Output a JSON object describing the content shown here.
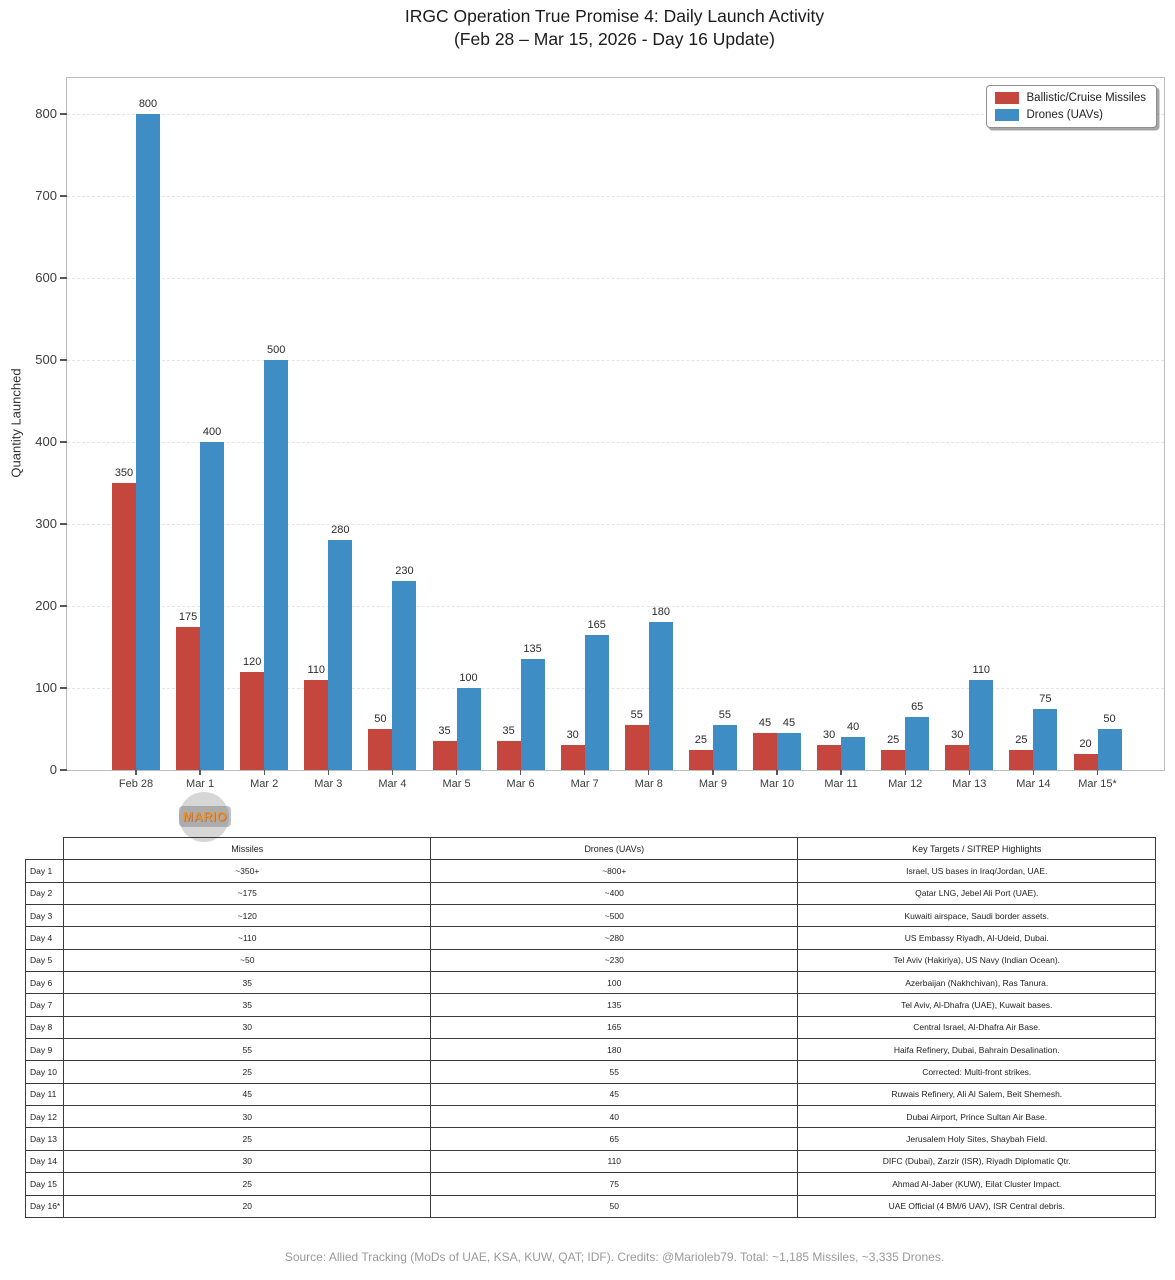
{
  "title": {
    "line1": "IRGC Operation True Promise 4: Daily Launch Activity",
    "line2": "(Feb 28 – Mar 15, 2026 - Day 16 Update)"
  },
  "chart_data": {
    "type": "bar",
    "title": "IRGC Operation True Promise 4: Daily Launch Activity (Feb 28 – Mar 15, 2026 - Day 16 Update)",
    "xlabel": "",
    "ylabel": "Quantity Launched",
    "ylim": [
      0,
      844
    ],
    "yticks": [
      0,
      100,
      200,
      300,
      400,
      500,
      600,
      700,
      800
    ],
    "grid": "horizontal-dashed",
    "legend_position": "top-right",
    "categories": [
      "Feb 28",
      "Mar 1",
      "Mar 2",
      "Mar 3",
      "Mar 4",
      "Mar 5",
      "Mar 6",
      "Mar 7",
      "Mar 8",
      "Mar 9",
      "Mar 10",
      "Mar 11",
      "Mar 12",
      "Mar 13",
      "Mar 14",
      "Mar 15*"
    ],
    "series": [
      {
        "name": "Ballistic/Cruise Missiles",
        "color": "#c5463c",
        "values": [
          350,
          175,
          120,
          110,
          50,
          35,
          35,
          30,
          55,
          25,
          45,
          30,
          25,
          30,
          25,
          20
        ]
      },
      {
        "name": "Drones (UAVs)",
        "color": "#3e8ec5",
        "values": [
          800,
          400,
          500,
          280,
          230,
          100,
          135,
          165,
          180,
          55,
          45,
          40,
          65,
          110,
          75,
          50
        ]
      }
    ]
  },
  "watermark": "MARIO",
  "table": {
    "headers": [
      "",
      "Missiles",
      "Drones (UAVs)",
      "Key Targets / SITREP Highlights"
    ],
    "rows": [
      {
        "label": "Day 1",
        "missiles": "~350+",
        "drones": "~800+",
        "targets": "Israel, US bases in Iraq/Jordan, UAE."
      },
      {
        "label": "Day 2",
        "missiles": "~175",
        "drones": "~400",
        "targets": "Qatar LNG, Jebel Ali Port (UAE)."
      },
      {
        "label": "Day 3",
        "missiles": "~120",
        "drones": "~500",
        "targets": "Kuwaiti airspace, Saudi border assets."
      },
      {
        "label": "Day 4",
        "missiles": "~110",
        "drones": "~280",
        "targets": "US Embassy Riyadh, Al-Udeid, Dubai."
      },
      {
        "label": "Day 5",
        "missiles": "~50",
        "drones": "~230",
        "targets": "Tel Aviv (Hakiriya), US Navy (Indian Ocean)."
      },
      {
        "label": "Day 6",
        "missiles": "35",
        "drones": "100",
        "targets": "Azerbaijan (Nakhchivan), Ras Tanura."
      },
      {
        "label": "Day 7",
        "missiles": "35",
        "drones": "135",
        "targets": "Tel Aviv, Al-Dhafra (UAE), Kuwait bases."
      },
      {
        "label": "Day 8",
        "missiles": "30",
        "drones": "165",
        "targets": "Central Israel, Al-Dhafra Air Base."
      },
      {
        "label": "Day 9",
        "missiles": "55",
        "drones": "180",
        "targets": "Haifa Refinery, Dubai, Bahrain Desalination."
      },
      {
        "label": "Day 10",
        "missiles": "25",
        "drones": "55",
        "targets": "Corrected: Multi-front strikes."
      },
      {
        "label": "Day 11",
        "missiles": "45",
        "drones": "45",
        "targets": "Ruwais Refinery, Ali Al Salem, Beit Shemesh."
      },
      {
        "label": "Day 12",
        "missiles": "30",
        "drones": "40",
        "targets": "Dubai Airport, Prince Sultan Air Base."
      },
      {
        "label": "Day 13",
        "missiles": "25",
        "drones": "65",
        "targets": "Jerusalem Holy Sites, Shaybah Field."
      },
      {
        "label": "Day 14",
        "missiles": "30",
        "drones": "110",
        "targets": "DIFC (Dubai), Zarzir (ISR), Riyadh Diplomatic Qtr."
      },
      {
        "label": "Day 15",
        "missiles": "25",
        "drones": "75",
        "targets": "Ahmad Al-Jaber (KUW), Eilat Cluster Impact."
      },
      {
        "label": "Day 16*",
        "missiles": "20",
        "drones": "50",
        "targets": "UAE Official (4 BM/6 UAV), ISR Central debris."
      }
    ]
  },
  "footer": "Source: Allied Tracking (MoDs of UAE, KSA, KUW, QAT; IDF). Credits: @Marioleb79. Total: ~1,185 Missiles, ~3,335 Drones."
}
